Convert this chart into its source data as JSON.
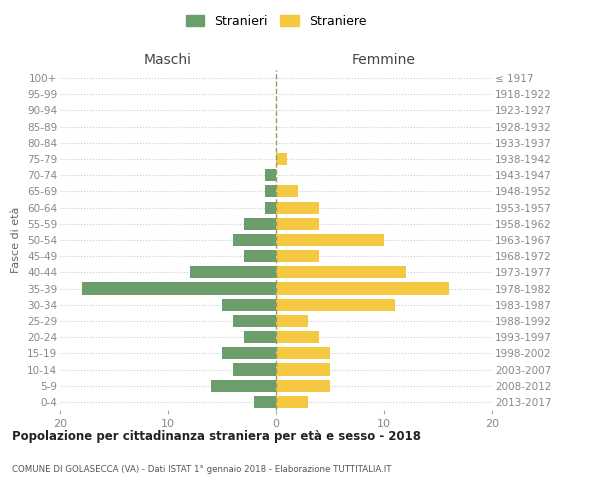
{
  "age_groups": [
    "0-4",
    "5-9",
    "10-14",
    "15-19",
    "20-24",
    "25-29",
    "30-34",
    "35-39",
    "40-44",
    "45-49",
    "50-54",
    "55-59",
    "60-64",
    "65-69",
    "70-74",
    "75-79",
    "80-84",
    "85-89",
    "90-94",
    "95-99",
    "100+"
  ],
  "birth_years": [
    "2013-2017",
    "2008-2012",
    "2003-2007",
    "1998-2002",
    "1993-1997",
    "1988-1992",
    "1983-1987",
    "1978-1982",
    "1973-1977",
    "1968-1972",
    "1963-1967",
    "1958-1962",
    "1953-1957",
    "1948-1952",
    "1943-1947",
    "1938-1942",
    "1933-1937",
    "1928-1932",
    "1923-1927",
    "1918-1922",
    "≤ 1917"
  ],
  "males": [
    2,
    6,
    4,
    5,
    3,
    4,
    5,
    18,
    8,
    3,
    4,
    3,
    1,
    1,
    1,
    0,
    0,
    0,
    0,
    0,
    0
  ],
  "females": [
    3,
    5,
    5,
    5,
    4,
    3,
    11,
    16,
    12,
    4,
    10,
    4,
    4,
    2,
    0,
    1,
    0,
    0,
    0,
    0,
    0
  ],
  "male_color": "#6b9e6b",
  "female_color": "#f5c842",
  "xlim": 20,
  "title": "Popolazione per cittadinanza straniera per età e sesso - 2018",
  "subtitle": "COMUNE DI GOLASECCA (VA) - Dati ISTAT 1° gennaio 2018 - Elaborazione TUTTITALIA.IT",
  "ylabel_left": "Fasce di età",
  "xlabel_left": "Maschi",
  "xlabel_right": "Femmine",
  "legend_stranieri": "Stranieri",
  "legend_straniere": "Straniere",
  "bg_color": "#ffffff",
  "grid_color": "#cccccc",
  "bar_height": 0.75,
  "figwidth": 6.0,
  "figheight": 5.0,
  "dpi": 100
}
